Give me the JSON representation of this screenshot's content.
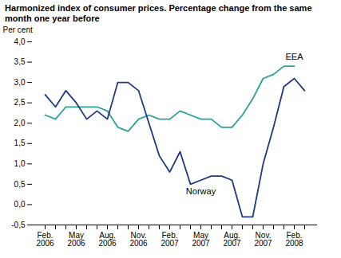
{
  "chart_data": {
    "type": "line",
    "title": "Harmonized index of consumer prices. Percentage change from the same month one year before",
    "y_label": "Per cent",
    "categories": [
      "Feb.\n2006",
      null,
      null,
      "May\n2006",
      null,
      null,
      "Aug.\n2006",
      null,
      null,
      "Nov.\n2006",
      null,
      null,
      "Feb.\n2007",
      null,
      null,
      "May\n2007",
      null,
      null,
      "Aug.\n2007",
      null,
      null,
      "Nov.\n2007",
      null,
      null,
      "Feb.\n2008",
      null
    ],
    "series": [
      {
        "name": "EEA",
        "color": "#2aa19b",
        "values": [
          2.2,
          2.1,
          2.4,
          2.4,
          2.4,
          2.4,
          2.3,
          1.9,
          1.8,
          2.1,
          2.2,
          2.1,
          2.1,
          2.3,
          2.2,
          2.1,
          2.1,
          1.9,
          1.9,
          2.2,
          2.6,
          3.1,
          3.2,
          3.4,
          3.4,
          null
        ]
      },
      {
        "name": "Norway",
        "color": "#1c3a85",
        "values": [
          2.7,
          2.4,
          2.8,
          2.5,
          2.1,
          2.3,
          2.1,
          3.0,
          3.0,
          2.8,
          2.0,
          1.2,
          0.8,
          1.3,
          0.5,
          0.6,
          0.7,
          0.7,
          0.6,
          -0.3,
          -0.3,
          1.0,
          1.9,
          2.9,
          3.1,
          2.8
        ]
      }
    ],
    "ylim": [
      -0.5,
      4.0
    ],
    "yticks": [
      {
        "value": -0.5,
        "label": "-0,5"
      },
      {
        "value": 0,
        "label": "0,0"
      },
      {
        "value": 0.5,
        "label": "0,5"
      },
      {
        "value": 1,
        "label": "1,0"
      },
      {
        "value": 1.5,
        "label": "1,5"
      },
      {
        "value": 2,
        "label": "2,0"
      },
      {
        "value": 2.5,
        "label": "2,5"
      },
      {
        "value": 3,
        "label": "3,0"
      },
      {
        "value": 3.5,
        "label": "3,5"
      },
      {
        "value": 4,
        "label": "4,0"
      }
    ],
    "grid": false
  }
}
